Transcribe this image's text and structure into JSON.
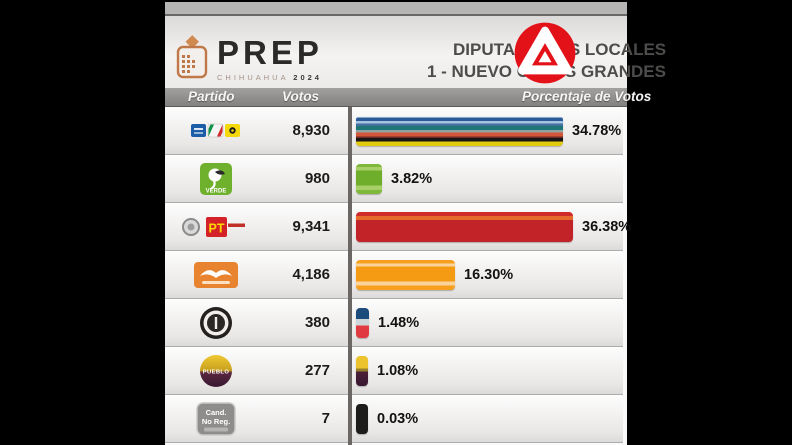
{
  "brand": {
    "name": "PREP",
    "region": "CHIHUAHUA",
    "year": "2024"
  },
  "title": {
    "line1": "DIPUTACIONES LOCALES",
    "line2": "1 - NUEVO CASAS GRANDES"
  },
  "table": {
    "columns": [
      "Partido",
      "Votos",
      "Porcentaje de Votos"
    ],
    "rows": [
      {
        "id": "pan-pri-prd",
        "logo": "pan-pri-prd-coalition-logo",
        "votes": "8,930",
        "pct": 34.78,
        "pct_label": "34.78%"
      },
      {
        "id": "verde",
        "logo": "partido-verde-logo",
        "votes": "980",
        "pct": 3.82,
        "pct_label": "3.82%"
      },
      {
        "id": "pt",
        "logo": "pt-coalition-logo",
        "votes": "9,341",
        "pct": 36.38,
        "pct_label": "36.38%"
      },
      {
        "id": "mc",
        "logo": "movimiento-ciudadano-logo",
        "votes": "4,186",
        "pct": 16.3,
        "pct_label": "16.30%"
      },
      {
        "id": "circulo",
        "logo": "circle-emblem-logo",
        "votes": "380",
        "pct": 1.48,
        "pct_label": "1.48%"
      },
      {
        "id": "pueblo",
        "logo": "pueblo-logo",
        "votes": "277",
        "pct": 1.08,
        "pct_label": "1.08%"
      },
      {
        "id": "noreg",
        "logo": "cand-no-reg-badge",
        "badge_line1": "Cand.",
        "badge_line2": "No Reg.",
        "votes": "7",
        "pct": 0.03,
        "pct_label": "0.03%"
      }
    ]
  },
  "chart_data": {
    "type": "bar",
    "categories": [
      "PAN-PRI-PRD",
      "VERDE",
      "PT",
      "MC",
      "CIRCULO",
      "PUEBLO",
      "CAND-NO-REG"
    ],
    "values": [
      34.78,
      3.82,
      36.38,
      16.3,
      1.48,
      1.08,
      0.03
    ],
    "votes": [
      8930,
      980,
      9341,
      4186,
      380,
      277,
      7
    ],
    "xlabel": "Porcentaje de Votos",
    "xlim": [
      0,
      40
    ]
  },
  "colors": {
    "watermark_red": "#e31118",
    "header_bar": "#8d8987",
    "pan_blue": "#1c5da8",
    "pri_green": "#0e9444",
    "pri_red": "#d12a2a",
    "prd_yellow": "#f5d80a",
    "verde_green": "#6fb02c",
    "pt_red": "#c12328",
    "mc_orange": "#f59b13",
    "pueblo_gold": "#ecc32c",
    "pueblo_maroon": "#4a2038",
    "noreg_black": "#1d1c1b"
  }
}
